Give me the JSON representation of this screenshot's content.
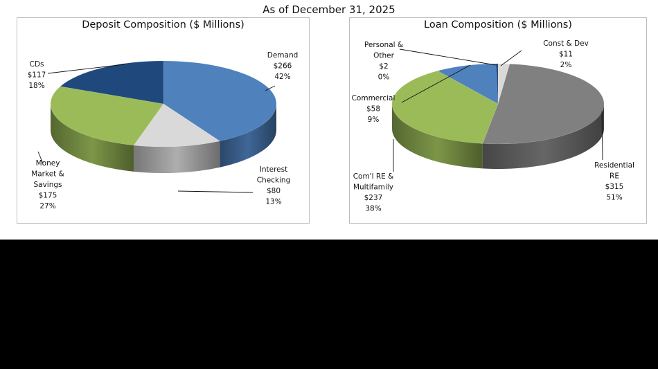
{
  "page": {
    "title": "As of December 31, 2025"
  },
  "chart_data": [
    {
      "type": "pie",
      "title": "Deposit Composition ($ Millions)",
      "slices": [
        {
          "label": "Demand",
          "value_label": "$266",
          "percent_label": "42%",
          "value": 266,
          "color": "#4f81bd"
        },
        {
          "label": "Interest Checking",
          "value_label": "$80",
          "percent_label": "13%",
          "value": 80,
          "color": "#d9d9d9"
        },
        {
          "label": "Money Market & Savings",
          "value_label": "$175",
          "percent_label": "27%",
          "value": 175,
          "color": "#9bbb59"
        },
        {
          "label": "CDs",
          "value_label": "$117",
          "percent_label": "18%",
          "value": 117,
          "color": "#1f497d"
        }
      ]
    },
    {
      "type": "pie",
      "title": "Loan Composition ($ Millions)",
      "slices": [
        {
          "label": "Const & Dev",
          "value_label": "$11",
          "percent_label": "2%",
          "value": 11,
          "color": "#d9d9d9"
        },
        {
          "label": "Residential RE",
          "value_label": "$315",
          "percent_label": "51%",
          "value": 315,
          "color": "#808080"
        },
        {
          "label": "Com'l RE & Multifamily",
          "value_label": "$237",
          "percent_label": "38%",
          "value": 237,
          "color": "#9bbb59"
        },
        {
          "label": "Commercial",
          "value_label": "$58",
          "percent_label": "9%",
          "value": 58,
          "color": "#4f81bd"
        },
        {
          "label": "Personal & Other",
          "value_label": "$2",
          "percent_label": "0%",
          "value": 2,
          "color": "#1f497d"
        }
      ]
    }
  ]
}
